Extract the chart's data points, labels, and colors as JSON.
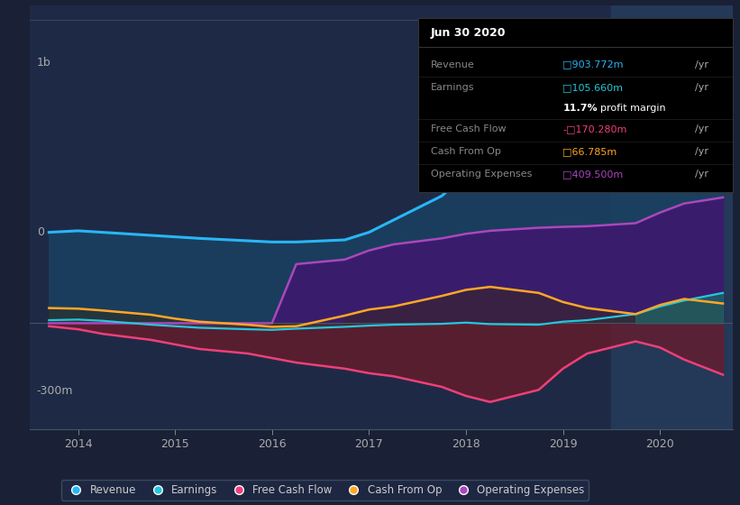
{
  "bg_color": "#1a2035",
  "plot_bg_color": "#1e2a45",
  "title": "Jun 30 2020",
  "ytick_1b": "1b",
  "ytick_0": "0",
  "ytick_neg300m": "-300m",
  "xlabel_years": [
    "2014",
    "2015",
    "2016",
    "2017",
    "2018",
    "2019",
    "2020"
  ],
  "legend": [
    {
      "label": "Revenue",
      "color": "#29b6f6"
    },
    {
      "label": "Earnings",
      "color": "#26c6da"
    },
    {
      "label": "Free Cash Flow",
      "color": "#ec407a"
    },
    {
      "label": "Cash From Op",
      "color": "#ffa726"
    },
    {
      "label": "Operating Expenses",
      "color": "#ab47bc"
    }
  ],
  "tooltip_title": "Jun 30 2020",
  "tooltip_rows": [
    {
      "label": "Revenue",
      "prefix": "",
      "value": "903.772m",
      "color": "#29b6f6"
    },
    {
      "label": "Earnings",
      "prefix": "",
      "value": "105.660m",
      "color": "#26c6da"
    },
    {
      "label": "",
      "prefix": "",
      "value": "11.7% profit margin",
      "color": "#ffffff"
    },
    {
      "label": "Free Cash Flow",
      "prefix": "-",
      "value": "170.280m",
      "color": "#ec407a"
    },
    {
      "label": "Cash From Op",
      "prefix": "",
      "value": "66.785m",
      "color": "#ffa726"
    },
    {
      "label": "Operating Expenses",
      "prefix": "",
      "value": "409.500m",
      "color": "#ab47bc"
    }
  ],
  "xmin": 2013.5,
  "xmax": 2020.75,
  "ymin": -350,
  "ymax": 1050,
  "highlight_start": 2019.5,
  "highlight_end": 2020.75,
  "revenue_color": "#29b6f6",
  "earnings_color": "#26c6da",
  "fcf_color": "#ec407a",
  "cash_op_color": "#ffa726",
  "op_exp_color": "#ab47bc",
  "revenue_fill_color": "#1a4060",
  "op_exp_fill_color": "#3d1a6e",
  "fcf_fill_color": "#6b1a2a",
  "highlight_color": "#243858"
}
